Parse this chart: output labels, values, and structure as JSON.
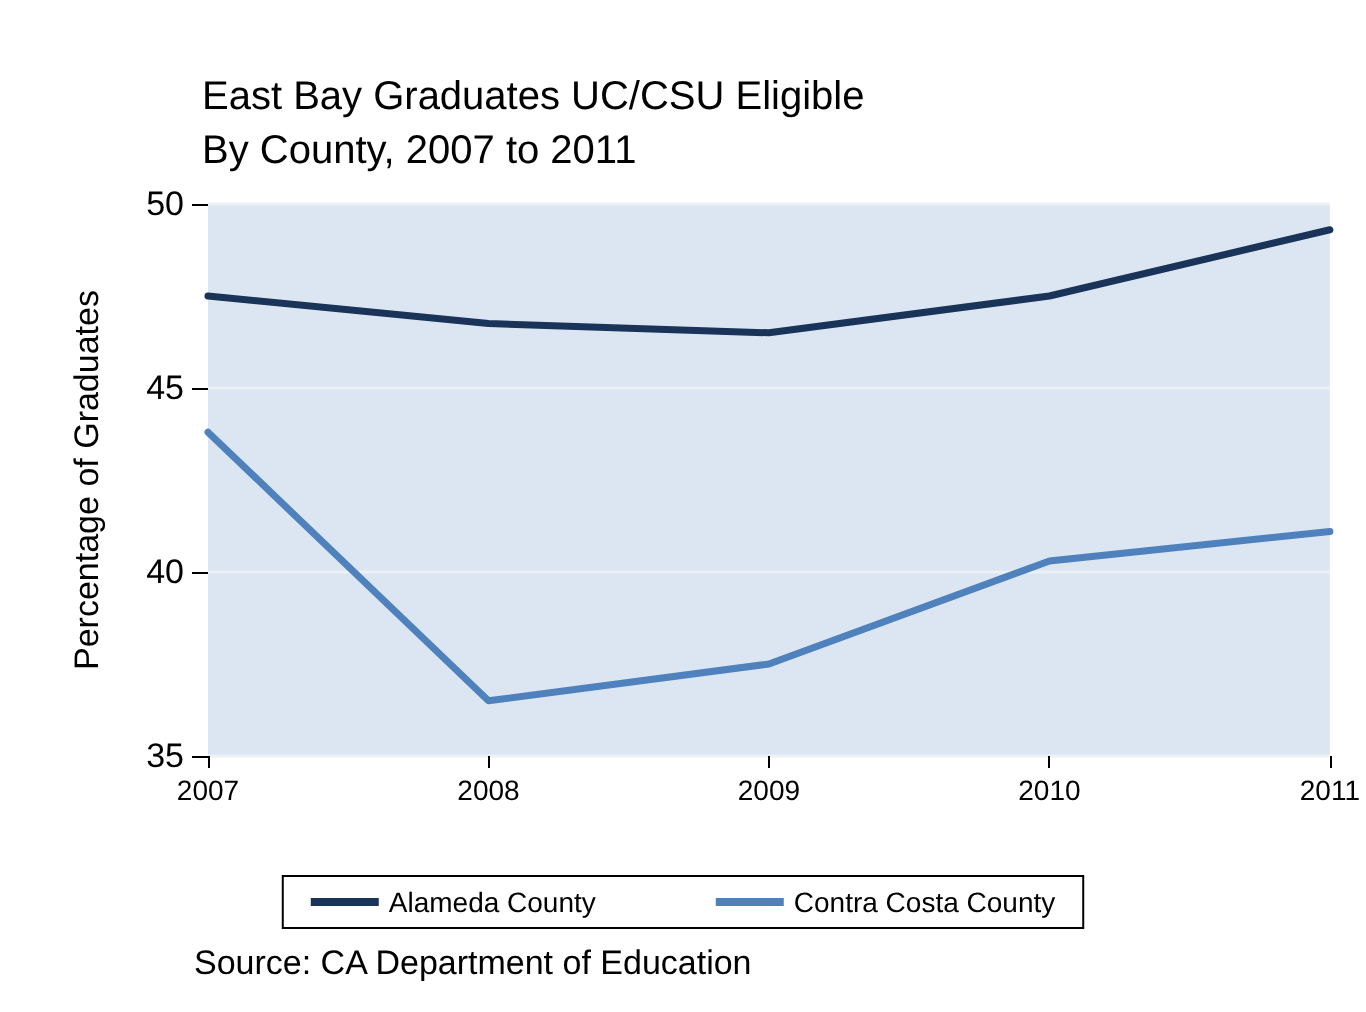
{
  "chart_data": {
    "type": "line",
    "title": "East Bay Graduates UC/CSU Eligible\nBy County, 2007 to 2011",
    "ylabel": "Percentage of Graduates",
    "x": [
      2007,
      2008,
      2009,
      2010,
      2011
    ],
    "xlim": [
      2007,
      2011
    ],
    "xticks": [
      2007,
      2008,
      2009,
      2010,
      2011
    ],
    "ylim": [
      35,
      50
    ],
    "yticks": [
      35,
      40,
      45,
      50
    ],
    "grid": "y",
    "legend": "bottom",
    "marker": "none",
    "line_style": "solid",
    "annotations": [
      "Source: CA Department of Education"
    ],
    "series": [
      {
        "name": "Alameda County",
        "color": "#1a3358",
        "values": [
          47.5,
          46.75,
          46.5,
          47.5,
          49.3
        ]
      },
      {
        "name": "Contra Costa County",
        "color": "#4f81bd",
        "values": [
          43.8,
          36.5,
          37.5,
          40.3,
          41.1
        ]
      }
    ]
  }
}
